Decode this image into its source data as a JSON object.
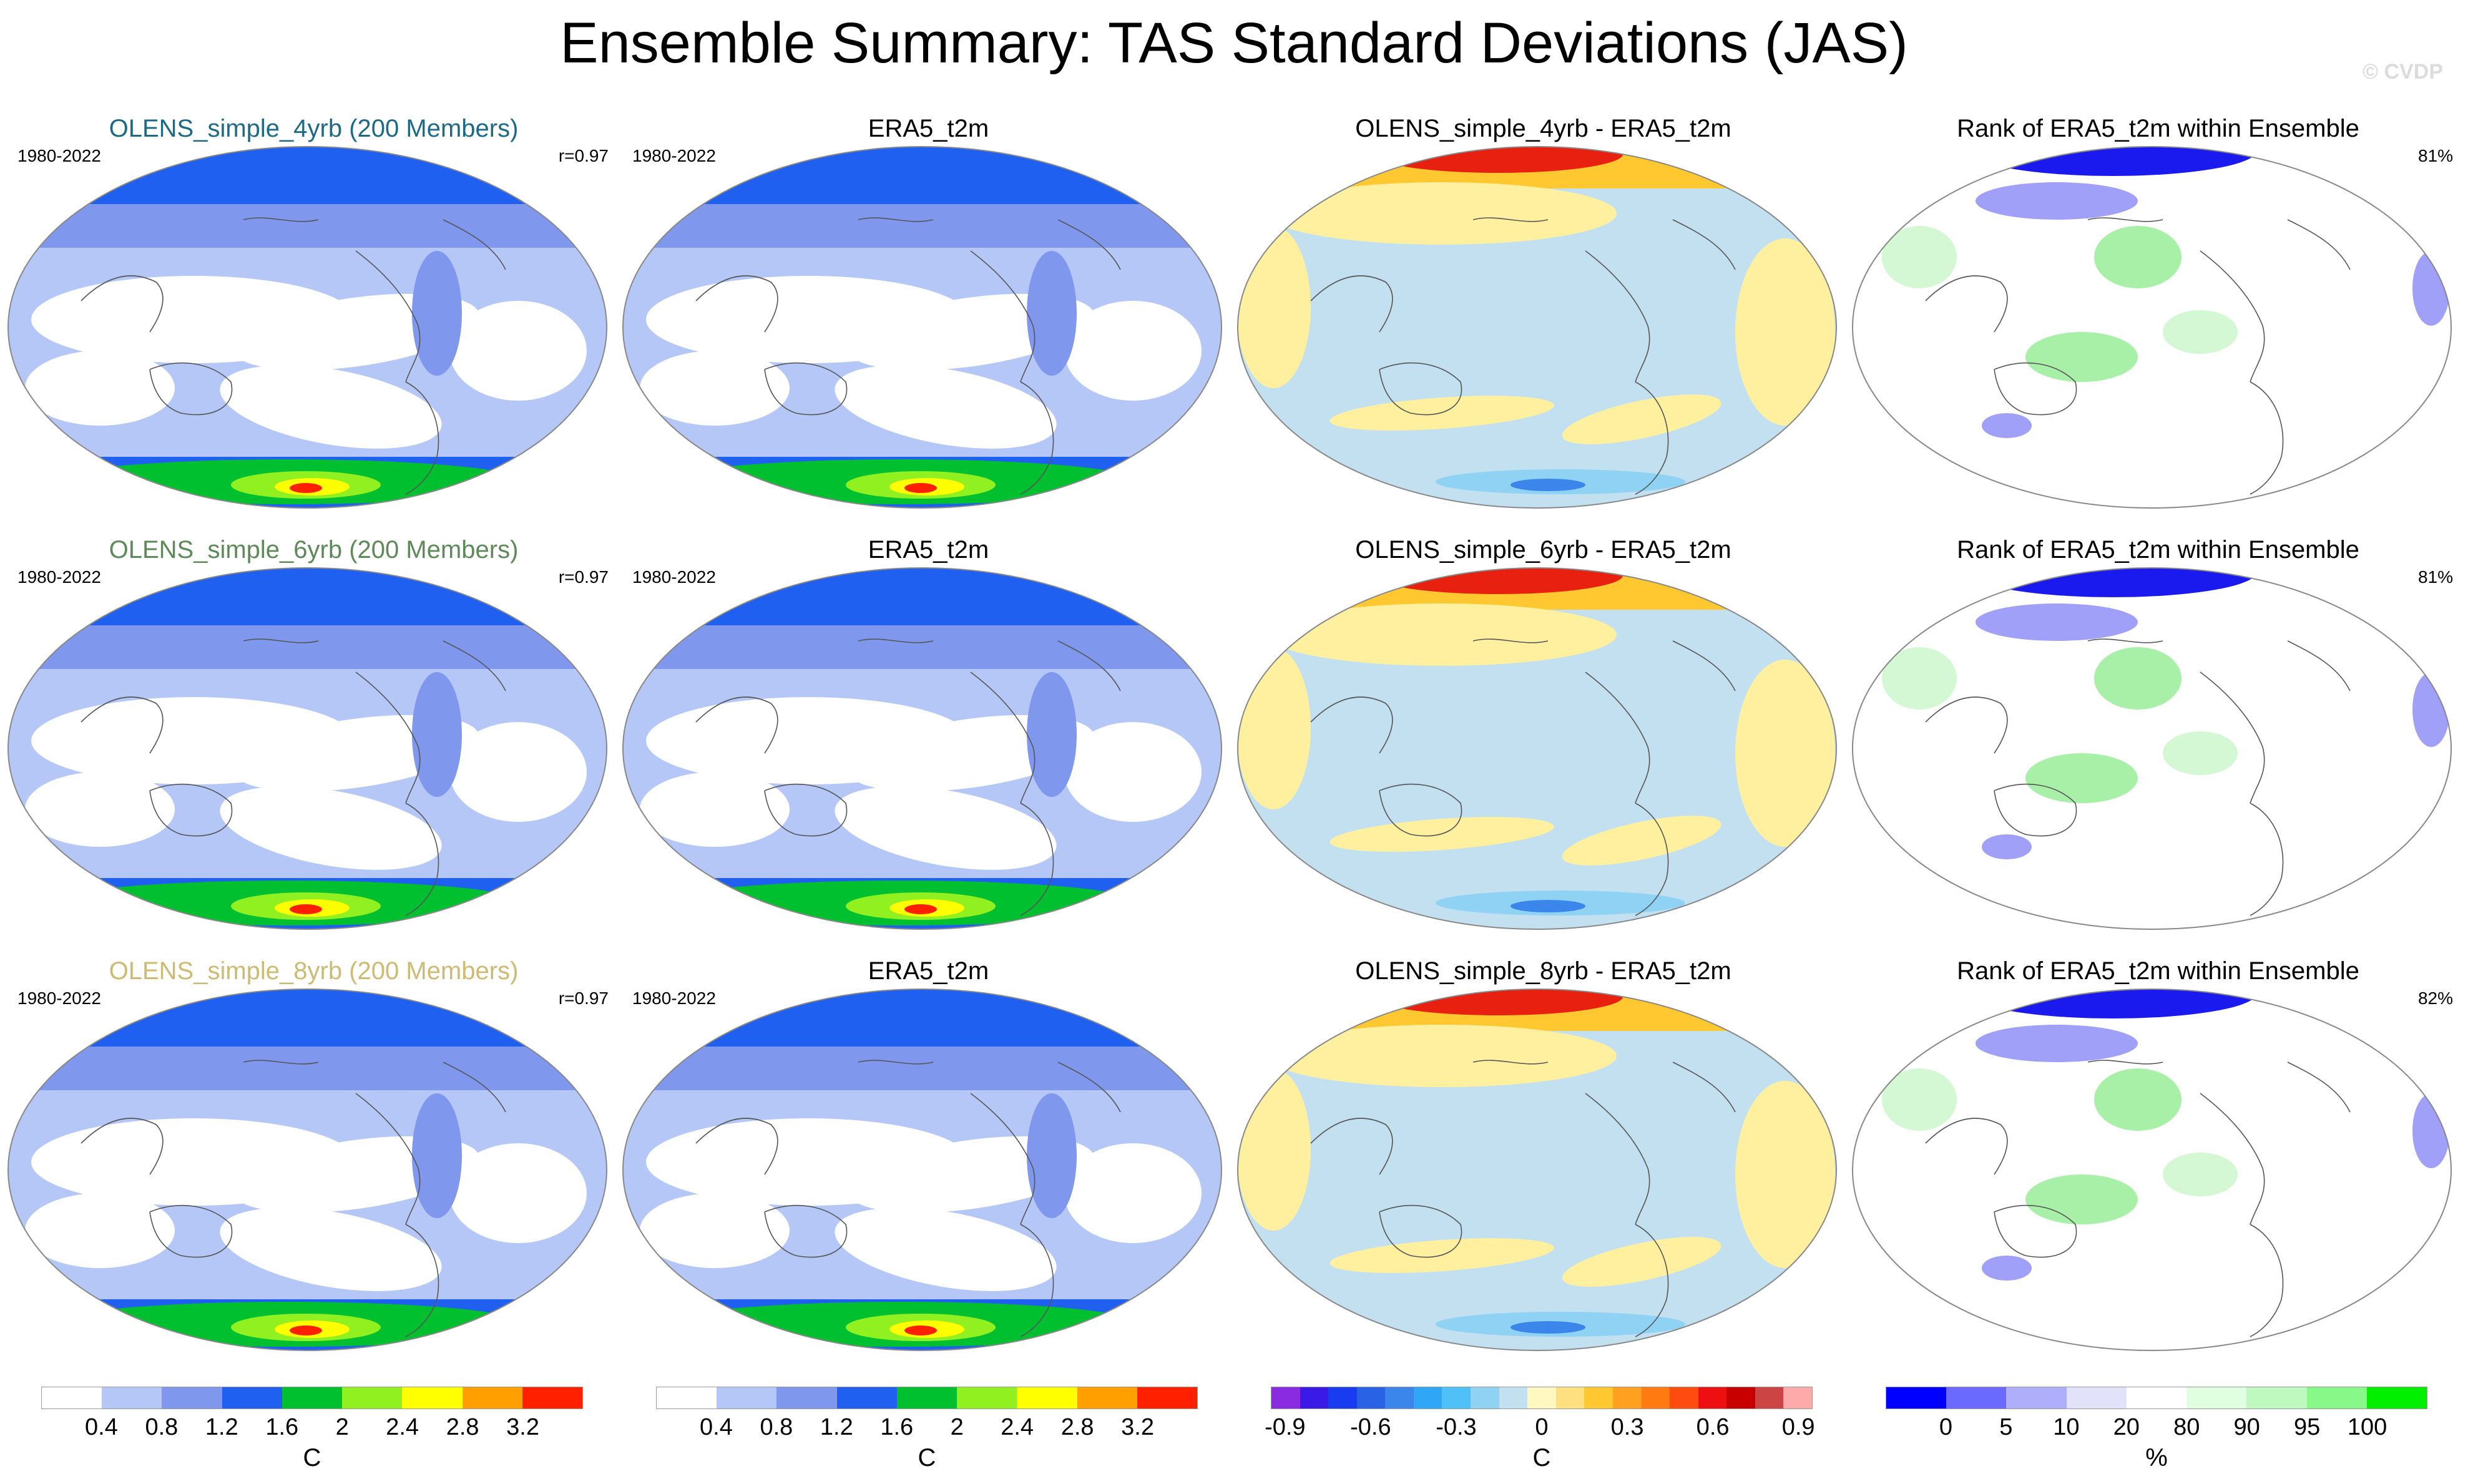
{
  "header": {
    "title": "Ensemble Summary: TAS Standard Deviations (JAS)",
    "watermark": "© CVDP"
  },
  "rows": [
    {
      "model": {
        "title": "OLENS_simple_4yrb (200 Members)",
        "title_color": "#1d6a87",
        "years": "1980-2022",
        "corr": "r=0.97"
      },
      "obs": {
        "title": "ERA5_t2m",
        "years": "1980-2022"
      },
      "diff": {
        "title": "OLENS_simple_4yrb - ERA5_t2m"
      },
      "rank": {
        "title": "Rank of ERA5_t2m within Ensemble",
        "pct": "81%"
      }
    },
    {
      "model": {
        "title": "OLENS_simple_6yrb (200 Members)",
        "title_color": "#5e8a5a",
        "years": "1980-2022",
        "corr": "r=0.97"
      },
      "obs": {
        "title": "ERA5_t2m",
        "years": "1980-2022"
      },
      "diff": {
        "title": "OLENS_simple_6yrb - ERA5_t2m"
      },
      "rank": {
        "title": "Rank of ERA5_t2m within Ensemble",
        "pct": "81%"
      }
    },
    {
      "model": {
        "title": "OLENS_simple_8yrb (200 Members)",
        "title_color": "#cdbb74",
        "years": "1980-2022",
        "corr": "r=0.97"
      },
      "obs": {
        "title": "ERA5_t2m",
        "years": "1980-2022"
      },
      "diff": {
        "title": "OLENS_simple_8yrb - ERA5_t2m"
      },
      "rank": {
        "title": "Rank of ERA5_t2m within Ensemble",
        "pct": "82%"
      }
    }
  ],
  "colorbars": [
    {
      "unit": "C",
      "ticks": [
        "0.4",
        "0.8",
        "1.2",
        "1.6",
        "2",
        "2.4",
        "2.8",
        "3.2"
      ],
      "colors": [
        "#ffffff",
        "#b4c7f7",
        "#7f98ee",
        "#2060f0",
        "#00c030",
        "#90f020",
        "#ffff00",
        "#ffa000",
        "#ff2000"
      ]
    },
    {
      "unit": "C",
      "ticks": [
        "0.4",
        "0.8",
        "1.2",
        "1.6",
        "2",
        "2.4",
        "2.8",
        "3.2"
      ],
      "colors": [
        "#ffffff",
        "#b4c7f7",
        "#7f98ee",
        "#2060f0",
        "#00c030",
        "#90f020",
        "#ffff00",
        "#ffa000",
        "#ff2000"
      ]
    },
    {
      "unit": "C",
      "ticks": [
        "-0.9",
        "-0.6",
        "-0.3",
        "0",
        "0.3",
        "0.6",
        "0.9"
      ],
      "colors": [
        "#8a2be2",
        "#3a1ae6",
        "#1a3cf0",
        "#2a62e6",
        "#3a86ea",
        "#2fa6f6",
        "#4fc0f8",
        "#8fd2f4",
        "#c2e0f0",
        "#fff8c0",
        "#ffe080",
        "#ffc830",
        "#ffa020",
        "#ff7a10",
        "#ff4a10",
        "#ee1010",
        "#c80000",
        "#cc4444",
        "#ffaaaa"
      ]
    },
    {
      "unit": "%",
      "ticks": [
        "0",
        "5",
        "10",
        "20",
        "80",
        "90",
        "95",
        "100"
      ],
      "colors": [
        "#0000ff",
        "#6a6aff",
        "#aeaefa",
        "#e2e2fb",
        "#ffffff",
        "#e0ffe0",
        "#c0f9c0",
        "#88f888",
        "#00f000"
      ]
    }
  ],
  "map_colors": {
    "sd": [
      "#ffffff",
      "#b4c7f7",
      "#7f98ee",
      "#2060f0",
      "#00c030",
      "#90f020",
      "#ffff00",
      "#ffa000",
      "#ff2000"
    ],
    "diff": {
      "base": "#c2e0f0",
      "warm1": "#fff0a0",
      "warm2": "#ffc830",
      "warm3": "#ff7a10",
      "hot": "#e82010",
      "cool1": "#8fd2f4",
      "cool2": "#3a86ea"
    },
    "rank": {
      "low": "#1a1aee",
      "lowmid": "#a0a0f8",
      "high": "#a8f0a8",
      "highmid": "#d4f8d4"
    },
    "coast": "#555555"
  }
}
